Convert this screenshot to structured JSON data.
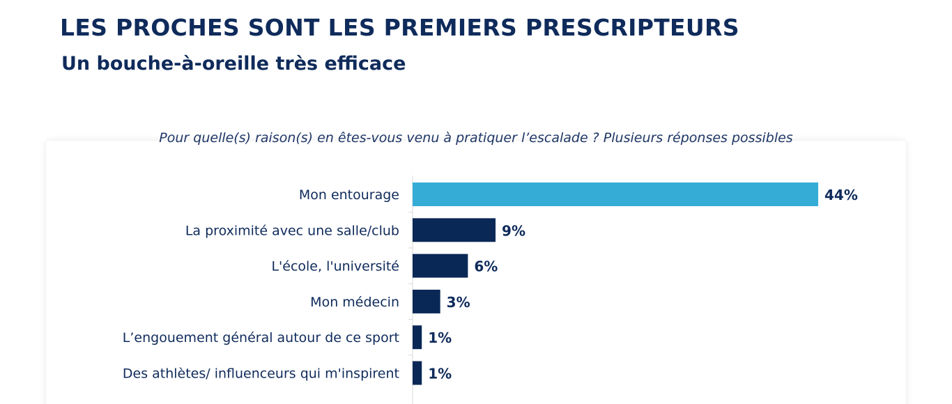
{
  "header": {
    "title": "LES PROCHES SONT LES PREMIERS PRESCRIPTEURS",
    "subtitle": "Un bouche-à-oreille très efficace"
  },
  "colors": {
    "highlight": "#35acd6",
    "bar": "#0a2856",
    "text": "#0f2b5b"
  },
  "chart_data": {
    "type": "bar",
    "orientation": "horizontal",
    "title": "Pour quelle(s) raison(s) en êtes-vous venu à pratiquer l’escalade ?  Plusieurs réponses possibles",
    "categories": [
      "Mon entourage",
      "La proximité avec une salle/club",
      "L'école, l'université",
      "Mon médecin",
      "L’engouement général autour de ce sport",
      "Des athlètes/ influenceurs qui m'inspirent"
    ],
    "values": [
      44,
      9,
      6,
      3,
      1,
      1
    ],
    "value_labels": [
      "44%",
      "9%",
      "6%",
      "3%",
      "1%",
      "1%"
    ],
    "unit": "%",
    "highlight_index": 0,
    "xlim": [
      0,
      48
    ],
    "grid": false,
    "legend": "none"
  }
}
